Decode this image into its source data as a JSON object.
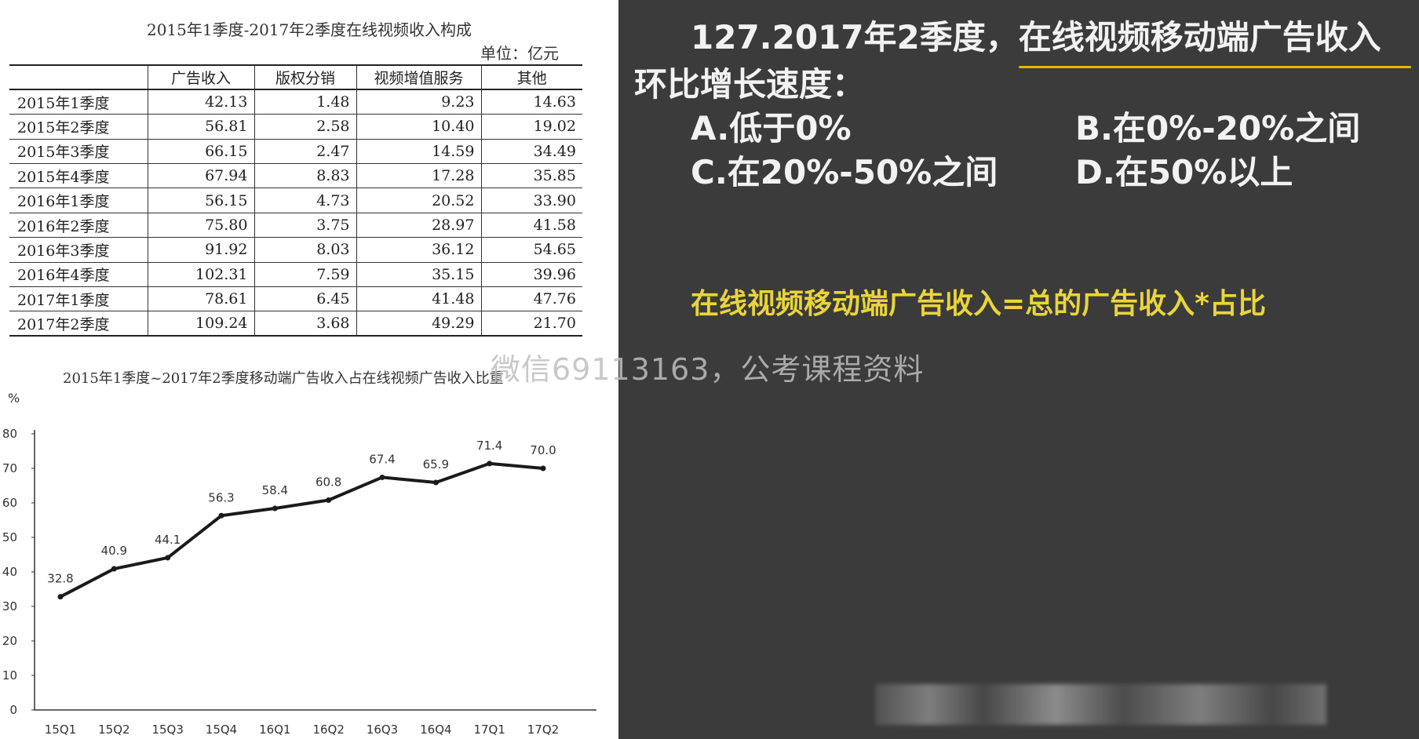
{
  "table": {
    "title": "2015年1季度-2017年2季度在线视频收入构成",
    "unit": "单位：亿元",
    "columns": [
      "",
      "广告收入",
      "版权分销",
      "视频增值服务",
      "其他"
    ],
    "rows": [
      [
        "2015年1季度",
        "42.13",
        "1.48",
        "9.23",
        "14.63"
      ],
      [
        "2015年2季度",
        "56.81",
        "2.58",
        "10.40",
        "19.02"
      ],
      [
        "2015年3季度",
        "66.15",
        "2.47",
        "14.59",
        "34.49"
      ],
      [
        "2015年4季度",
        "67.94",
        "8.83",
        "17.28",
        "35.85"
      ],
      [
        "2016年1季度",
        "56.15",
        "4.73",
        "20.52",
        "33.90"
      ],
      [
        "2016年2季度",
        "75.80",
        "3.75",
        "28.97",
        "41.58"
      ],
      [
        "2016年3季度",
        "91.92",
        "8.03",
        "36.12",
        "54.65"
      ],
      [
        "2016年4季度",
        "102.31",
        "7.59",
        "35.15",
        "39.96"
      ],
      [
        "2017年1季度",
        "78.61",
        "6.45",
        "41.48",
        "47.76"
      ],
      [
        "2017年2季度",
        "109.24",
        "3.68",
        "49.29",
        "21.70"
      ]
    ]
  },
  "chart_data": {
    "type": "line",
    "title": "2015年1季度~2017年2季度移动端广告收入占在线视频广告收入比重",
    "ylabel": "%",
    "xlabel": "",
    "categories": [
      "15Q1",
      "15Q2",
      "15Q3",
      "15Q4",
      "16Q1",
      "16Q2",
      "16Q3",
      "16Q4",
      "17Q1",
      "17Q2"
    ],
    "values": [
      32.8,
      40.9,
      44.1,
      56.3,
      58.4,
      60.8,
      67.4,
      65.9,
      71.4,
      70.0
    ],
    "value_labels": [
      "32.8",
      "40.9",
      "44.1",
      "56.3",
      "58.4",
      "60.8",
      "67.4",
      "65.9",
      "71.4",
      "70.0"
    ],
    "yticks": [
      "0",
      "10",
      "20",
      "30",
      "40",
      "50",
      "60",
      "70",
      "80"
    ],
    "ylim": [
      0,
      80
    ],
    "grid": false,
    "line_color": "#1a1a1a"
  },
  "question": {
    "line1": "127.2017年2季度，在线视频移动端广告收入",
    "line2": "环比增长速度：",
    "option_a": "A.低于0%",
    "option_b": "B.在0%-20%之间",
    "option_c": "C.在20%-50%之间",
    "option_d": "D.在50%以上",
    "text_color": "#f2f2f2",
    "underline_color": "#e6b800"
  },
  "formula": {
    "text": "在线视频移动端广告收入=总的广告收入*占比",
    "color": "#e9d53a"
  },
  "watermark": {
    "text": "微信69113163，公考课程资料"
  }
}
